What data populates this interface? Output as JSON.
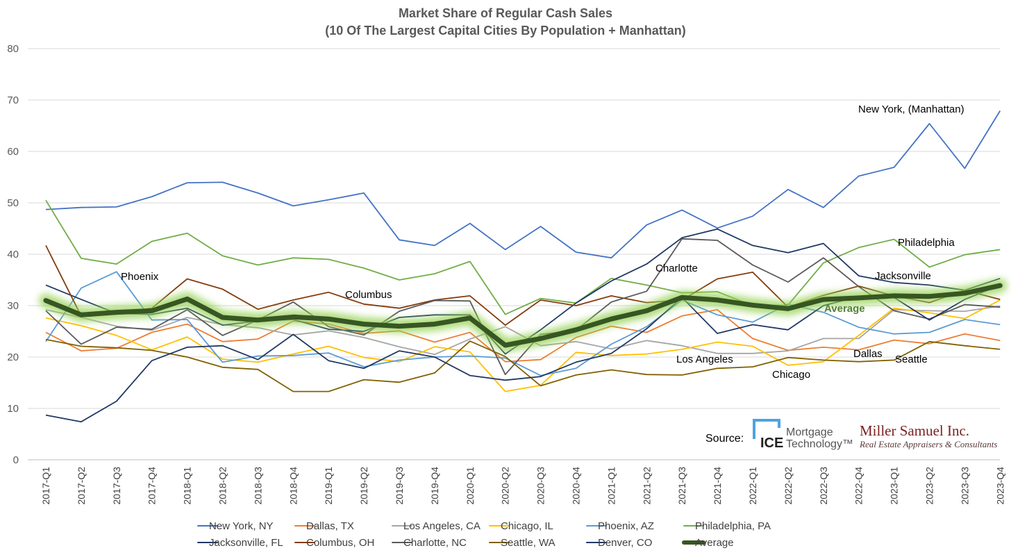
{
  "chart_data": {
    "type": "line",
    "title": "Market Share of Regular Cash Sales",
    "subtitle": "(10 Of The Largest Capital Cities By Population + Manhattan)",
    "xlabel": "",
    "ylabel": "",
    "ylim": [
      0,
      80
    ],
    "yticks": [
      "0",
      "10",
      "20",
      "30",
      "40",
      "50",
      "60",
      "70",
      "80"
    ],
    "grid": true,
    "legend_position": "bottom",
    "categories": [
      "2017-Q1",
      "2017-Q2",
      "2017-Q3",
      "2017-Q4",
      "2018-Q1",
      "2018-Q2",
      "2018-Q3",
      "2018-Q4",
      "2019-Q1",
      "2019-Q2",
      "2019-Q3",
      "2019-Q4",
      "2020-Q1",
      "2020-Q2",
      "2020-Q3",
      "2020-Q4",
      "2021-Q1",
      "2021-Q2",
      "2021-Q3",
      "2021-Q4",
      "2022-Q1",
      "2022-Q2",
      "2022-Q3",
      "2022-Q4",
      "2023-Q1",
      "2023-Q2",
      "2023-Q3",
      "2023-Q4"
    ],
    "series": [
      {
        "name": "New York, NY",
        "color": "#4472C4",
        "values": [
          48.7,
          49.1,
          49.2,
          51.2,
          53.9,
          54.0,
          51.9,
          49.4,
          50.6,
          51.9,
          42.8,
          41.7,
          46.0,
          40.9,
          45.4,
          40.4,
          39.3,
          45.7,
          48.6,
          45.1,
          47.4,
          52.6,
          49.1,
          55.2,
          56.9,
          65.4,
          56.7,
          67.9
        ]
      },
      {
        "name": "Dallas, TX",
        "color": "#ED7D31",
        "values": [
          24.8,
          21.2,
          21.7,
          24.8,
          26.4,
          23.0,
          23.5,
          27.0,
          26.4,
          24.6,
          25.1,
          22.9,
          24.8,
          19.1,
          19.5,
          23.8,
          26.0,
          24.8,
          28.0,
          29.2,
          23.6,
          21.3,
          21.9,
          21.4,
          23.3,
          22.6,
          24.5,
          23.2
        ]
      },
      {
        "name": "Los Angeles, CA",
        "color": "#A5A5A5",
        "values": [
          29.2,
          27.7,
          26.0,
          25.2,
          27.7,
          26.3,
          25.7,
          24.3,
          25.1,
          23.8,
          22.0,
          20.5,
          23.5,
          25.9,
          22.2,
          23.0,
          21.6,
          23.2,
          22.2,
          20.7,
          20.7,
          21.2,
          23.6,
          23.6,
          29.2,
          29.0,
          28.9,
          29.9
        ]
      },
      {
        "name": "Chicago, IL",
        "color": "#FFC000",
        "values": [
          27.6,
          26.1,
          24.2,
          21.4,
          23.9,
          19.6,
          19.0,
          20.6,
          22.1,
          19.9,
          19.1,
          22.0,
          21.0,
          13.3,
          14.5,
          20.9,
          20.3,
          20.6,
          21.5,
          22.9,
          22.1,
          18.4,
          19.1,
          24.2,
          29.5,
          28.6,
          27.5,
          31.1
        ]
      },
      {
        "name": "Phoenix, AZ",
        "color": "#5B9BD5",
        "values": [
          23.0,
          33.4,
          36.6,
          27.2,
          27.3,
          19.0,
          20.2,
          20.3,
          20.8,
          18.1,
          19.4,
          20.0,
          20.2,
          19.8,
          16.4,
          17.8,
          22.5,
          25.9,
          31.1,
          28.2,
          26.8,
          30.3,
          28.7,
          25.8,
          24.5,
          24.8,
          27.3,
          26.3
        ]
      },
      {
        "name": "Philadelphia, PA",
        "color": "#70AD47",
        "values": [
          50.5,
          39.2,
          38.1,
          42.5,
          44.1,
          39.7,
          37.9,
          39.3,
          39.0,
          37.3,
          35.0,
          36.2,
          38.6,
          28.3,
          31.4,
          30.5,
          35.3,
          34.0,
          32.5,
          32.7,
          30.0,
          30.1,
          38.3,
          41.3,
          42.9,
          37.5,
          39.9,
          40.9
        ]
      },
      {
        "name": "Jacksonville, FL",
        "color": "#1F3864",
        "values": [
          34.0,
          31.2,
          28.5,
          28.3,
          29.5,
          26.2,
          27.0,
          27.3,
          25.4,
          25.0,
          27.7,
          28.2,
          28.2,
          20.6,
          25.3,
          30.5,
          34.8,
          38.1,
          43.2,
          44.9,
          41.7,
          40.3,
          42.1,
          35.8,
          34.5,
          34.0,
          33.0,
          35.3
        ]
      },
      {
        "name": "Columbus, OH",
        "color": "#843C0C",
        "values": [
          41.7,
          28.0,
          28.5,
          29.5,
          35.2,
          33.2,
          29.3,
          31.1,
          32.6,
          30.3,
          29.5,
          31.1,
          31.9,
          26.2,
          31.1,
          30.0,
          31.9,
          30.6,
          31.1,
          35.2,
          36.5,
          29.7,
          32.0,
          33.8,
          31.9,
          30.6,
          33.0,
          31.2
        ]
      },
      {
        "name": "Charlotte, NC",
        "color": "#595959",
        "values": [
          29.0,
          22.5,
          25.8,
          25.4,
          29.2,
          24.2,
          27.2,
          30.7,
          25.9,
          24.3,
          28.9,
          31.0,
          30.9,
          16.6,
          24.4,
          25.2,
          30.7,
          32.8,
          43.0,
          42.7,
          37.9,
          34.6,
          39.3,
          33.7,
          29.0,
          27.4,
          30.2,
          29.7
        ]
      },
      {
        "name": "Seattle, WA",
        "color": "#806000",
        "values": [
          23.4,
          22.1,
          21.8,
          21.3,
          20.0,
          18.0,
          17.6,
          13.3,
          13.3,
          15.6,
          15.1,
          16.9,
          23.1,
          20.1,
          14.4,
          16.5,
          17.5,
          16.6,
          16.5,
          17.8,
          18.1,
          19.9,
          19.4,
          19.1,
          19.4,
          23.0,
          22.2,
          21.5
        ]
      },
      {
        "name": "Denver, CO",
        "color": "#203864",
        "values": [
          8.7,
          7.4,
          11.4,
          19.3,
          21.9,
          22.2,
          19.5,
          24.4,
          19.3,
          17.8,
          21.2,
          20.0,
          16.4,
          15.5,
          16.2,
          19.0,
          20.7,
          25.5,
          31.6,
          24.6,
          26.3,
          25.3,
          30.0,
          31.8,
          31.6,
          27.2,
          31.2,
          34.0
        ]
      },
      {
        "name": "Average",
        "color": "#375623",
        "values": [
          31.0,
          28.2,
          28.7,
          29.0,
          31.3,
          27.7,
          27.2,
          27.8,
          27.4,
          26.4,
          26.0,
          26.4,
          27.6,
          22.3,
          23.6,
          25.3,
          27.4,
          29.0,
          31.6,
          31.1,
          30.1,
          29.4,
          31.2,
          31.5,
          31.9,
          31.8,
          32.4,
          33.9
        ]
      }
    ],
    "annotations": [
      {
        "text": "New York, (Manhattan)"
      },
      {
        "text": "Philadelphia"
      },
      {
        "text": "Jacksonville"
      },
      {
        "text": "Charlotte"
      },
      {
        "text": "Average"
      },
      {
        "text": "Phoenix"
      },
      {
        "text": "Columbus"
      },
      {
        "text": "Los Angeles"
      },
      {
        "text": "Chicago"
      },
      {
        "text": "Dallas"
      },
      {
        "text": "Seattle"
      }
    ]
  },
  "source": {
    "label": "Source:",
    "ice_brand": "ICE",
    "ice_line1": "Mortgage",
    "ice_line2": "Technology™",
    "ms_name": "Miller Samuel Inc.",
    "ms_sub": "Real Estate Appraisers & Consultants"
  },
  "colors": {
    "grid": "#d9d9d9",
    "average_glow": "#92D050",
    "average_label": "#548235",
    "ice_accent": "#4EA3E0",
    "ms_name": "#7A1F1F",
    "ms_sub": "#5A3A3A"
  }
}
